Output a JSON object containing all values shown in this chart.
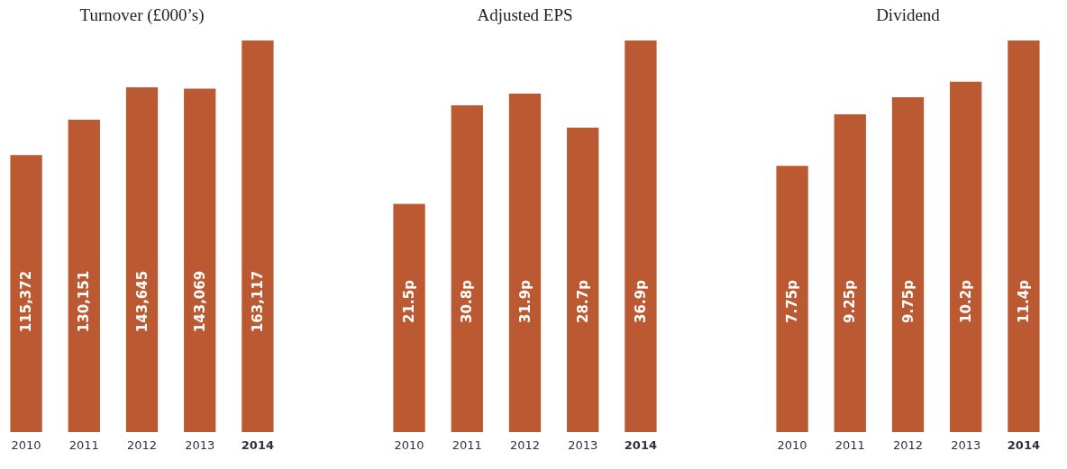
{
  "chart_data": [
    {
      "type": "bar",
      "title": "Turnover (£000’s)",
      "categories": [
        "2010",
        "2011",
        "2012",
        "2013",
        "2014"
      ],
      "values": [
        115372,
        130151,
        143645,
        143069,
        163117
      ],
      "value_labels": [
        "115,372",
        "130,151",
        "143,645",
        "143,069",
        "163,117"
      ],
      "color": "#bb5a32",
      "tick_labels": "x"
    },
    {
      "type": "bar",
      "title": "Adjusted EPS",
      "categories": [
        "2010",
        "2011",
        "2012",
        "2013",
        "2014"
      ],
      "values": [
        21.5,
        30.8,
        31.9,
        28.7,
        36.9
      ],
      "value_labels": [
        "21.5p",
        "30.8p",
        "31.9p",
        "28.7p",
        "36.9p"
      ],
      "color": "#bb5a32",
      "tick_labels": "x"
    },
    {
      "type": "bar",
      "title": "Dividend",
      "categories": [
        "2010",
        "2011",
        "2012",
        "2013",
        "2014"
      ],
      "values": [
        7.75,
        9.25,
        9.75,
        10.2,
        11.4
      ],
      "value_labels": [
        "7.75p",
        "9.25p",
        "9.75p",
        "10.2p",
        "11.4p"
      ],
      "color": "#bb5a32",
      "tick_labels": "x"
    }
  ]
}
